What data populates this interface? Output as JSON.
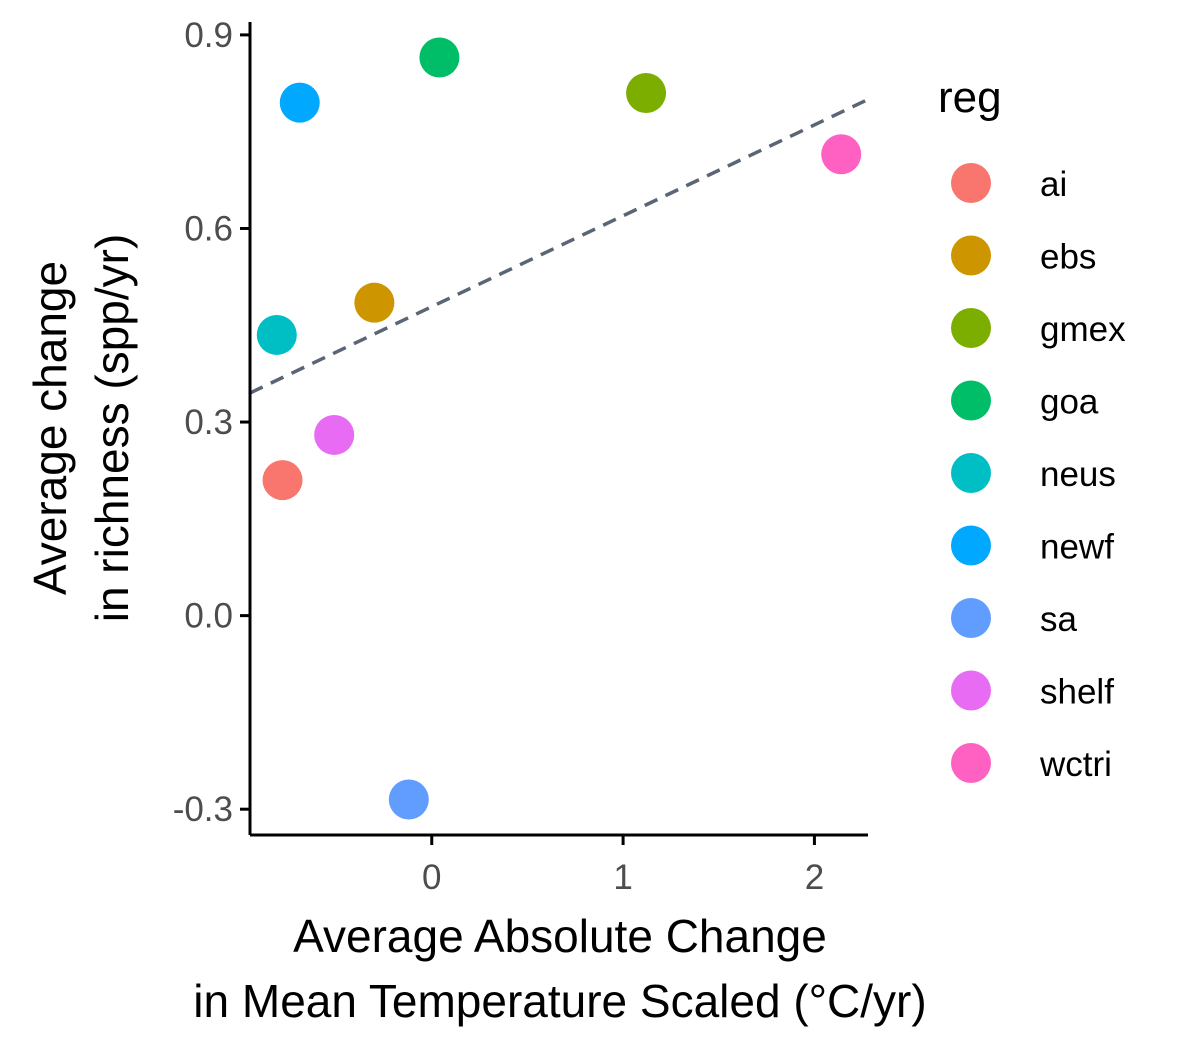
{
  "chart_data": {
    "type": "scatter",
    "xlabel": [
      "Average Absolute Change",
      "in Mean Temperature Scaled (°C/yr)"
    ],
    "ylabel": [
      "Average change",
      "in richness (spp/yr)"
    ],
    "xlim": [
      -0.95,
      2.28
    ],
    "ylim": [
      -0.34,
      0.92
    ],
    "xticks": [
      0,
      1,
      2
    ],
    "xtick_labels": [
      "0",
      "1",
      "2"
    ],
    "yticks": [
      -0.3,
      0.0,
      0.3,
      0.6,
      0.9
    ],
    "ytick_labels": [
      "-0.3",
      "0.0",
      "0.3",
      "0.6",
      "0.9"
    ],
    "grid": false,
    "legend": {
      "title": "reg",
      "placement": "right"
    },
    "points": [
      {
        "reg": "ai",
        "x": -0.78,
        "y": 0.21,
        "color": "#F8766D"
      },
      {
        "reg": "ebs",
        "x": -0.3,
        "y": 0.485,
        "color": "#CD9600"
      },
      {
        "reg": "gmex",
        "x": 1.12,
        "y": 0.81,
        "color": "#7CAE00"
      },
      {
        "reg": "goa",
        "x": 0.04,
        "y": 0.865,
        "color": "#00BE67"
      },
      {
        "reg": "neus",
        "x": -0.81,
        "y": 0.435,
        "color": "#00BFC4"
      },
      {
        "reg": "newf",
        "x": -0.69,
        "y": 0.795,
        "color": "#00A9FF"
      },
      {
        "reg": "sa",
        "x": -0.12,
        "y": -0.285,
        "color": "#619CFF"
      },
      {
        "reg": "shelf",
        "x": -0.51,
        "y": 0.28,
        "color": "#E76BF3"
      },
      {
        "reg": "wctri",
        "x": 2.14,
        "y": 0.715,
        "color": "#FF61C3"
      }
    ],
    "trend_line": {
      "style": "dashed",
      "color": "#5A6676",
      "x": [
        -0.95,
        2.28
      ],
      "y": [
        0.345,
        0.8
      ]
    }
  }
}
